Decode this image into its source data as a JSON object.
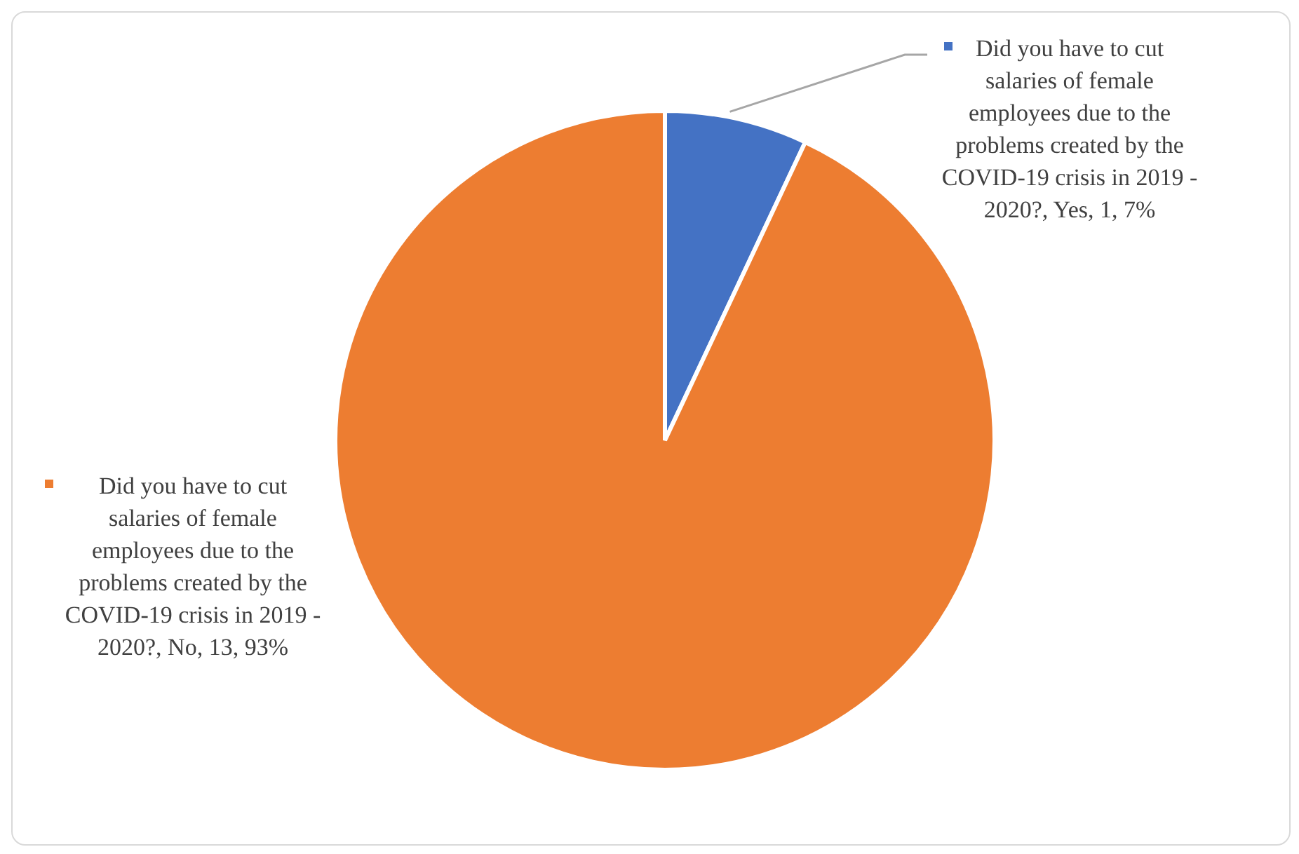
{
  "chart_data": {
    "type": "pie",
    "categories": [
      "Did you have to cut salaries of female employees due to the problems created by the COVID-19 crisis in 2019 - 2020?, Yes, 1, 7%",
      "Did you have to cut salaries of female employees due to the problems created by the COVID-19 crisis in 2019 - 2020?, No, 13, 93%"
    ],
    "values": [
      7,
      93
    ],
    "colors": [
      "#4472c4",
      "#ed7d31"
    ],
    "legend": "top left"
  }
}
